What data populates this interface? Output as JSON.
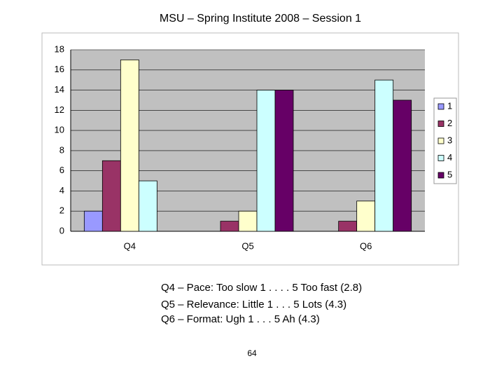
{
  "chart_data": {
    "type": "bar",
    "title": "MSU – Spring Institute 2008 – Session 1",
    "categories": [
      "Q4",
      "Q5",
      "Q6"
    ],
    "series": [
      {
        "name": "1",
        "color": "#9999ff",
        "values": [
          2,
          0,
          0
        ]
      },
      {
        "name": "2",
        "color": "#993366",
        "values": [
          7,
          1,
          1
        ]
      },
      {
        "name": "3",
        "color": "#ffffcc",
        "values": [
          17,
          2,
          3
        ]
      },
      {
        "name": "4",
        "color": "#ccffff",
        "values": [
          5,
          14,
          15
        ]
      },
      {
        "name": "5",
        "color": "#660066",
        "values": [
          0,
          14,
          13
        ]
      }
    ],
    "ylim": [
      0,
      18
    ],
    "yticks": [
      0,
      2,
      4,
      6,
      8,
      10,
      12,
      14,
      16,
      18
    ],
    "grid": true,
    "legend": "right",
    "annotations": [
      "Q4 – Pace: Too slow 1 . . . . 5 Too fast (2.8)",
      "Q5 – Relevance: Little 1 . . . 5 Lots (4.3)",
      "Q6 – Format: Ugh 1 . . . 5 Ah (4.3)"
    ],
    "page_number": "64"
  }
}
